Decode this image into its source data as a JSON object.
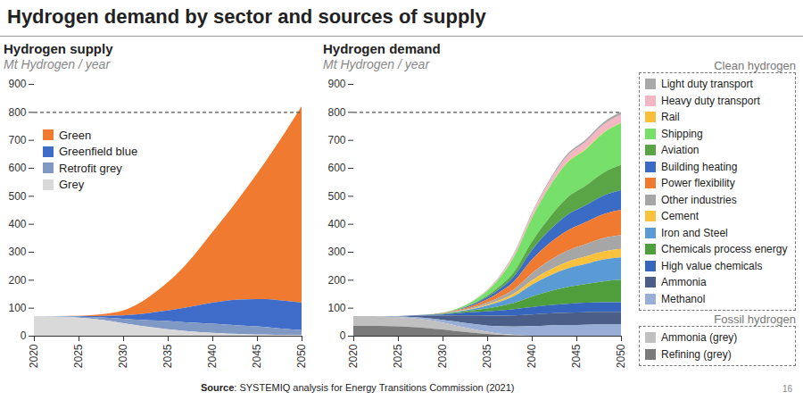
{
  "title": "Hydrogen demand by sector and sources of supply",
  "source_label": "Source",
  "source": ": SYSTEMIQ analysis for Energy Transitions Commission (2021)",
  "page": "16",
  "chart_data": [
    {
      "type": "area",
      "stacked": true,
      "title": "Hydrogen supply",
      "subtitle": "Mt Hydrogen / year",
      "legend": "top-left",
      "grid": false,
      "x": [
        2020,
        2022,
        2024,
        2026,
        2028,
        2030,
        2032,
        2034,
        2036,
        2038,
        2040,
        2042,
        2044,
        2046,
        2048,
        2050
      ],
      "xlim": [
        2020,
        2050
      ],
      "xticks": [
        2020,
        2025,
        2030,
        2035,
        2040,
        2045,
        2050
      ],
      "ylim": [
        0,
        900
      ],
      "yticks": [
        0,
        100,
        200,
        300,
        400,
        500,
        600,
        700,
        800,
        900
      ],
      "reference_line": 800,
      "series": [
        {
          "name": "Green",
          "color": "#f07a30",
          "values": [
            0,
            0,
            1,
            3,
            7,
            17,
            43,
            79,
            125,
            184,
            252,
            323,
            405,
            494,
            595,
            702
          ]
        },
        {
          "name": "Greenfield blue",
          "color": "#3e6cc8",
          "values": [
            0,
            0,
            1,
            3,
            6,
            12,
            20,
            32,
            45,
            60,
            75,
            88,
            95,
            100,
            100,
            98
          ]
        },
        {
          "name": "Retrofit grey",
          "color": "#7f98c4",
          "values": [
            0,
            1,
            2,
            5,
            10,
            16,
            22,
            27,
            30,
            32,
            33,
            32,
            30,
            27,
            22,
            18
          ]
        },
        {
          "name": "Grey",
          "color": "#d9d9d9",
          "values": [
            70,
            69,
            67,
            62,
            55,
            45,
            35,
            27,
            20,
            14,
            10,
            7,
            5,
            4,
            3,
            2
          ]
        }
      ]
    },
    {
      "type": "area",
      "stacked": true,
      "title": "Hydrogen demand",
      "subtitle": "Mt Hydrogen / year",
      "legend": "right",
      "grid": false,
      "x": [
        2020,
        2022,
        2024,
        2026,
        2028,
        2030,
        2032,
        2034,
        2036,
        2038,
        2040,
        2042,
        2044,
        2046,
        2048,
        2050
      ],
      "xlim": [
        2020,
        2050
      ],
      "xticks": [
        2020,
        2025,
        2030,
        2035,
        2040,
        2045,
        2050
      ],
      "ylim": [
        0,
        900
      ],
      "yticks": [
        0,
        100,
        200,
        300,
        400,
        500,
        600,
        700,
        800,
        900
      ],
      "reference_line": 800,
      "series": [
        {
          "name": "Light duty transport",
          "group": "Clean hydrogen",
          "color": "#a9a9a9",
          "values": [
            0,
            0,
            0,
            0,
            0,
            0,
            0,
            1,
            2,
            3,
            5,
            6,
            7,
            8,
            9,
            10
          ]
        },
        {
          "name": "Heavy duty transport",
          "group": "Clean hydrogen",
          "color": "#f4b6c2",
          "values": [
            0,
            0,
            0,
            0,
            0,
            0,
            1,
            2,
            5,
            9,
            13,
            18,
            22,
            25,
            27,
            28
          ]
        },
        {
          "name": "Rail",
          "group": "Clean hydrogen",
          "color": "#f9bf3b",
          "values": [
            0,
            0,
            0,
            0,
            0,
            0,
            0,
            0,
            0,
            1,
            1,
            1,
            2,
            2,
            2,
            2
          ]
        },
        {
          "name": "Shipping",
          "group": "Clean hydrogen",
          "color": "#77e06a",
          "values": [
            0,
            0,
            0,
            0,
            0,
            1,
            4,
            12,
            25,
            55,
            85,
            110,
            125,
            130,
            142,
            150
          ]
        },
        {
          "name": "Aviation",
          "group": "Clean hydrogen",
          "color": "#5aa545",
          "values": [
            0,
            0,
            0,
            0,
            0,
            0,
            1,
            3,
            8,
            15,
            30,
            46,
            62,
            70,
            82,
            90
          ]
        },
        {
          "name": "Building heating",
          "group": "Clean hydrogen",
          "color": "#3a6cc6",
          "values": [
            0,
            0,
            0,
            0,
            0,
            0,
            2,
            5,
            10,
            18,
            34,
            46,
            56,
            60,
            66,
            70
          ]
        },
        {
          "name": "Power flexibility",
          "group": "Clean hydrogen",
          "color": "#f07a30",
          "values": [
            0,
            0,
            0,
            0,
            0,
            1,
            3,
            8,
            16,
            28,
            48,
            62,
            72,
            78,
            85,
            90
          ]
        },
        {
          "name": "Other industries",
          "group": "Clean hydrogen",
          "color": "#a6a6a6",
          "values": [
            0,
            0,
            0,
            0,
            0,
            1,
            2,
            5,
            9,
            15,
            26,
            34,
            40,
            44,
            48,
            50
          ]
        },
        {
          "name": "Cement",
          "group": "Clean hydrogen",
          "color": "#f9c23c",
          "values": [
            0,
            0,
            0,
            0,
            0,
            0,
            1,
            3,
            6,
            10,
            15,
            20,
            24,
            27,
            29,
            30
          ]
        },
        {
          "name": "Iron and Steel",
          "group": "Clean hydrogen",
          "color": "#5b9bd5",
          "values": [
            0,
            0,
            0,
            0,
            0,
            1,
            3,
            7,
            14,
            24,
            42,
            56,
            66,
            72,
            78,
            80
          ]
        },
        {
          "name": "Chemicals process energy",
          "group": "Clean hydrogen",
          "color": "#4f9e3c",
          "values": [
            0,
            0,
            0,
            0,
            1,
            2,
            4,
            8,
            14,
            22,
            38,
            50,
            60,
            66,
            74,
            80
          ]
        },
        {
          "name": "High value chemicals",
          "group": "Clean hydrogen",
          "color": "#3565bd",
          "values": [
            0,
            0,
            0,
            1,
            2,
            4,
            8,
            12,
            17,
            22,
            26,
            29,
            32,
            34,
            35,
            35
          ]
        },
        {
          "name": "Ammonia",
          "group": "Clean hydrogen",
          "color": "#4a5e87",
          "values": [
            0,
            0,
            1,
            3,
            8,
            15,
            25,
            33,
            38,
            40,
            42,
            43,
            44,
            45,
            45,
            45
          ]
        },
        {
          "name": "Methanol",
          "group": "Clean hydrogen",
          "color": "#98aed6",
          "values": [
            0,
            0,
            1,
            3,
            6,
            10,
            15,
            20,
            25,
            30,
            34,
            37,
            38,
            39,
            40,
            40
          ]
        },
        {
          "name": "Ammonia (grey)",
          "group": "Fossil hydrogen",
          "color": "#c0c0c0",
          "values": [
            35,
            35,
            34,
            33,
            30,
            25,
            18,
            11,
            5,
            2,
            0,
            0,
            0,
            0,
            0,
            0
          ]
        },
        {
          "name": "Refining (grey)",
          "group": "Fossil hydrogen",
          "color": "#7a7a7a",
          "values": [
            35,
            35,
            34,
            32,
            28,
            22,
            15,
            9,
            4,
            1,
            0,
            0,
            0,
            0,
            0,
            0
          ]
        }
      ]
    }
  ]
}
